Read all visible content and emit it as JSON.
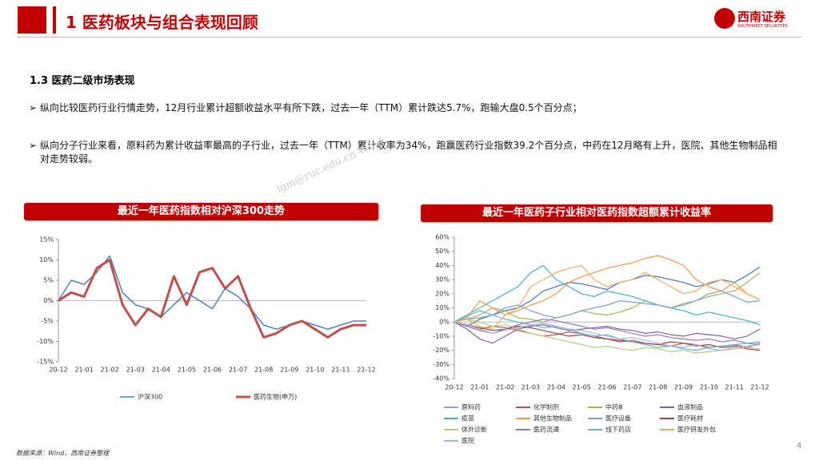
{
  "header": {
    "title": "1 医药板块与组合表现回顾",
    "logo_name": "西南证券",
    "logo_sub": "SOUTHWEST SECURITIES"
  },
  "section": "1.3 医药二级市场表现",
  "bullets": [
    "纵向比较医药行业行情走势，12月行业累计超额收益水平有所下跌，过去一年（TTM）累计跌达5.7%，跑输大盘0.5个百分点；",
    "纵向分子行业来看，原料药为累计收益率最高的子行业，过去一年（TTM）累计收率为34%，跑赢医药行业指数39.2个百分点，中药在12月略有上升，医院、其他生物制品相对走势较弱。"
  ],
  "watermark": "lgm@ruc.edu.cn Wind",
  "source": "数据来源：Wind，西南证券整理",
  "page": "4",
  "chart_data": [
    {
      "type": "line",
      "title": "最近一年医药指数相对沪深300走势",
      "categories": [
        "20-12",
        null,
        "21-01",
        null,
        "21-02",
        null,
        "21-03",
        null,
        "21-04",
        null,
        "21-05",
        null,
        "21-06",
        null,
        "21-07",
        null,
        "21-08",
        null,
        "21-09",
        null,
        "21-10",
        null,
        "21-11",
        null,
        "21-12"
      ],
      "ylim": [
        -15,
        15
      ],
      "yticks": [
        {
          "value": -15,
          "label": "-15%"
        },
        {
          "value": -10,
          "label": "-10%"
        },
        {
          "value": -5,
          "label": "-5%"
        },
        {
          "value": 0,
          "label": "0%"
        },
        {
          "value": 5,
          "label": "5%"
        },
        {
          "value": 10,
          "label": "10%"
        },
        {
          "value": 15,
          "label": "15%"
        }
      ],
      "series": [
        {
          "name": "沪深300",
          "color": "#4f81bd",
          "values": [
            0,
            5,
            4,
            7,
            11,
            2,
            -1,
            -2,
            -4,
            -1,
            2,
            0,
            -2,
            3,
            1,
            -2,
            -6,
            -7,
            -6,
            -5,
            -6,
            -7,
            -6,
            -5,
            -5
          ]
        },
        {
          "name": "医药生物(申万)",
          "color": "#c0504d",
          "values": [
            0,
            2,
            1,
            8,
            10,
            -1,
            -6,
            -2,
            -4,
            6,
            -1,
            7,
            8,
            3,
            6,
            -2,
            -9,
            -8,
            -6,
            -5,
            -7,
            -9,
            -7,
            -6,
            -6
          ]
        }
      ]
    },
    {
      "type": "line",
      "title": "最近一年医药子行业相对医药指数超额累计收益率",
      "categories": [
        "20-12",
        null,
        "21-01",
        null,
        "21-02",
        null,
        "21-03",
        null,
        "21-04",
        null,
        "21-05",
        null,
        "21-06",
        null,
        "21-07",
        null,
        "21-08",
        null,
        "21-09",
        null,
        "21-10",
        null,
        "21-11",
        null,
        "21-12"
      ],
      "ylim": [
        -40,
        60
      ],
      "yticks": [
        {
          "value": -40,
          "label": "-40%"
        },
        {
          "value": -30,
          "label": "-30%"
        },
        {
          "value": -20,
          "label": "-20%"
        },
        {
          "value": -10,
          "label": "-10%"
        },
        {
          "value": 0,
          "label": "0%"
        },
        {
          "value": 10,
          "label": "10%"
        },
        {
          "value": 20,
          "label": "20%"
        },
        {
          "value": 30,
          "label": "30%"
        },
        {
          "value": 40,
          "label": "40%"
        },
        {
          "value": 50,
          "label": "50%"
        },
        {
          "value": 60,
          "label": "60%"
        }
      ],
      "series": [
        {
          "name": "原料药",
          "color": "#4472c4",
          "values": [
            0,
            -3,
            2,
            5,
            8,
            10,
            15,
            22,
            25,
            28,
            27,
            25,
            23,
            28,
            30,
            33,
            32,
            30,
            28,
            25,
            27,
            30,
            28,
            33,
            39
          ]
        },
        {
          "name": "化学制剂",
          "color": "#c0504d",
          "values": [
            0,
            -2,
            -5,
            -3,
            -4,
            -6,
            -8,
            -10,
            -9,
            -7,
            -8,
            -10,
            -12,
            -14,
            -13,
            -15,
            -16,
            -17,
            -15,
            -16,
            -18,
            -17,
            -16,
            -18,
            -15
          ]
        },
        {
          "name": "中药Ⅲ",
          "color": "#9bbb59",
          "values": [
            0,
            2,
            5,
            10,
            8,
            3,
            2,
            0,
            3,
            5,
            8,
            6,
            5,
            7,
            10,
            15,
            12,
            10,
            13,
            15,
            18,
            20,
            22,
            28,
            35
          ]
        },
        {
          "name": "血液制品",
          "color": "#8064a2",
          "values": [
            0,
            -5,
            -12,
            -15,
            -10,
            -5,
            -3,
            -2,
            -4,
            -6,
            -5,
            -4,
            -3,
            -5,
            -6,
            -8,
            -7,
            -9,
            -10,
            -8,
            -9,
            -10,
            -12,
            -10,
            -5
          ]
        },
        {
          "name": "疫苗",
          "color": "#4bacc6",
          "values": [
            0,
            5,
            10,
            15,
            20,
            25,
            35,
            40,
            30,
            25,
            20,
            18,
            22,
            20,
            18,
            15,
            12,
            10,
            8,
            5,
            7,
            5,
            3,
            1,
            -2
          ]
        },
        {
          "name": "其他生物制品",
          "color": "#f79646",
          "values": [
            0,
            3,
            15,
            10,
            5,
            8,
            12,
            15,
            20,
            28,
            32,
            35,
            38,
            40,
            42,
            45,
            47,
            44,
            40,
            30,
            25,
            22,
            28,
            20,
            16
          ]
        },
        {
          "name": "医疗设备",
          "color": "#7f9fd0",
          "values": [
            0,
            2,
            3,
            5,
            10,
            12,
            8,
            5,
            3,
            5,
            8,
            10,
            12,
            15,
            14,
            13,
            12,
            10,
            12,
            15,
            20,
            22,
            18,
            14,
            15
          ]
        },
        {
          "name": "医疗耗材",
          "color": "#a04040",
          "values": [
            0,
            -2,
            -4,
            -6,
            -5,
            -3,
            -4,
            -6,
            -8,
            -10,
            -9,
            -11,
            -12,
            -13,
            -14,
            -15,
            -16,
            -14,
            -15,
            -17,
            -16,
            -18,
            -17,
            -19,
            -20
          ]
        },
        {
          "name": "体外诊断",
          "color": "#b5cf7a",
          "values": [
            0,
            2,
            0,
            -3,
            -2,
            -5,
            -8,
            -10,
            -12,
            -14,
            -16,
            -18,
            -17,
            -19,
            -20,
            -18,
            -19,
            -21,
            -20,
            -22,
            -21,
            -20,
            -19,
            -18,
            -19
          ]
        },
        {
          "name": "医药流通",
          "color": "#8c7bb5",
          "values": [
            0,
            -3,
            -6,
            -8,
            -5,
            -2,
            0,
            2,
            1,
            -1,
            -3,
            -5,
            -4,
            -6,
            -8,
            -10,
            -9,
            -11,
            -12,
            -13,
            -12,
            -14,
            -13,
            -15,
            -16
          ]
        },
        {
          "name": "线下药店",
          "color": "#5fb8d0",
          "values": [
            0,
            4,
            8,
            5,
            2,
            0,
            -2,
            -4,
            -3,
            -5,
            -8,
            -10,
            -9,
            -12,
            -14,
            -16,
            -18,
            -17,
            -19,
            -20,
            -18,
            -17,
            -16,
            -15,
            -14
          ]
        },
        {
          "name": "医疗研发外包",
          "color": "#f9a860",
          "values": [
            0,
            2,
            -3,
            -5,
            5,
            10,
            25,
            30,
            35,
            38,
            40,
            30,
            25,
            28,
            30,
            35,
            30,
            25,
            20,
            22,
            28,
            30,
            25,
            20,
            16
          ]
        },
        {
          "name": "医院",
          "color": "#a0b8e0",
          "values": [
            0,
            -2,
            -5,
            -8,
            -6,
            -4,
            -2,
            -1,
            -3,
            -5,
            -6,
            -8,
            -10,
            -12,
            -11,
            -13,
            -15,
            -17,
            -18,
            -16,
            -19,
            -20,
            -18,
            -17,
            -16
          ]
        }
      ]
    }
  ]
}
